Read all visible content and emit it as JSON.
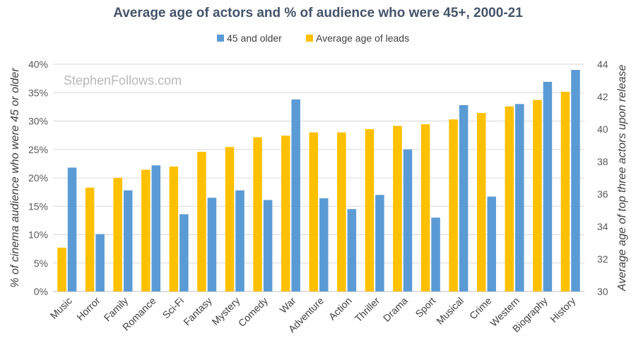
{
  "chart_data": {
    "type": "bar",
    "title": "Average age of actors and % of audience who were 45+, 2000-21",
    "watermark": "StephenFollows.com",
    "categories": [
      "Music",
      "Horror",
      "Family",
      "Romance",
      "Sci-Fi",
      "Fantasy",
      "Mystery",
      "Comedy",
      "War",
      "Adventure",
      "Action",
      "Thriller",
      "Drama",
      "Sport",
      "Musical",
      "Crime",
      "Western",
      "Biography",
      "History"
    ],
    "series": [
      {
        "name": "Average age of leads",
        "axis": "right",
        "color": "#ffc000",
        "values": [
          32.7,
          36.4,
          37.0,
          37.5,
          37.7,
          38.6,
          38.9,
          39.5,
          39.6,
          39.8,
          39.8,
          40.0,
          40.2,
          40.3,
          40.6,
          41.0,
          41.4,
          41.8,
          42.3
        ]
      },
      {
        "name": "45 and older",
        "axis": "left",
        "color": "#5b9bd5",
        "values": [
          21.8,
          10.1,
          17.8,
          22.2,
          13.6,
          16.5,
          17.8,
          16.1,
          33.8,
          16.4,
          14.5,
          17.0,
          25.0,
          13.0,
          32.8,
          16.7,
          33.0,
          36.9,
          39.0
        ]
      }
    ],
    "legend_order": [
      "45 and older",
      "Average age of leads"
    ],
    "legend_position": "top-center",
    "left_axis": {
      "label": "% of cinema audience who were 45 or older",
      "min": 0,
      "max": 40,
      "step": 5,
      "ticks": [
        "0%",
        "5%",
        "10%",
        "15%",
        "20%",
        "25%",
        "30%",
        "35%",
        "40%"
      ]
    },
    "right_axis": {
      "label": "Average age of top three actors upon release",
      "min": 30,
      "max": 44,
      "step": 2,
      "ticks": [
        "30",
        "32",
        "34",
        "36",
        "38",
        "40",
        "42",
        "44"
      ]
    },
    "grid": true
  }
}
